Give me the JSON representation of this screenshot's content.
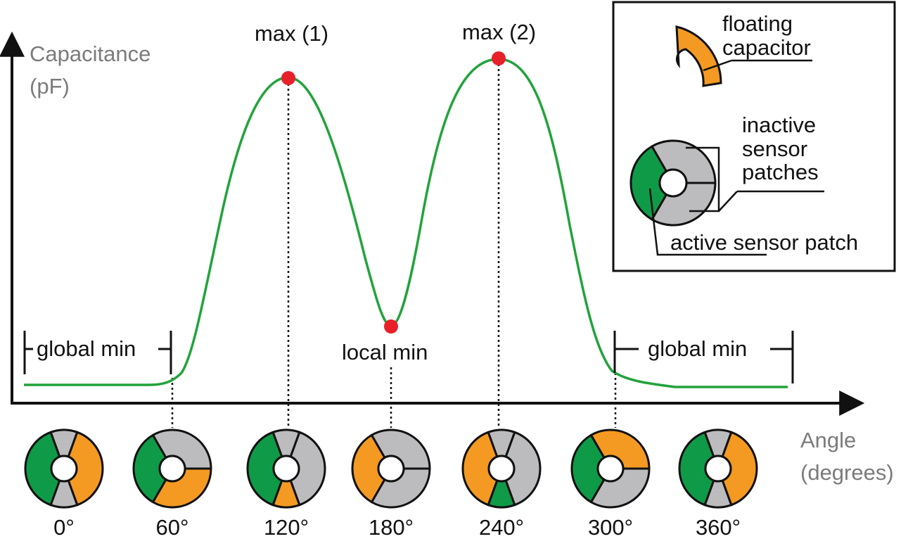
{
  "chart_data": {
    "type": "line",
    "ylabel": [
      "Capacitance",
      "(pF)"
    ],
    "xlabel": [
      "Angle",
      "(degrees)"
    ],
    "x": [
      0,
      60,
      120,
      180,
      240,
      300,
      360
    ],
    "xticks": [
      "0°",
      "60°",
      "120°",
      "180°",
      "240°",
      "300°",
      "360°"
    ],
    "curve_color": "#22a33b",
    "marker_color": "#e8202a",
    "annotations": {
      "max1": "max (1)",
      "max2": "max (2)",
      "local_min": "local min",
      "global_min_left": "global min",
      "global_min_right": "global min"
    }
  },
  "legend": {
    "floating_capacitor": [
      "floating",
      "capacitor"
    ],
    "inactive": [
      "inactive",
      "sensor",
      "patches"
    ],
    "active": "active sensor patch"
  },
  "colors": {
    "active": "#0f9a48",
    "inactive": "#bcbcbe",
    "floating": "#f49a22"
  },
  "sensors": [
    {
      "angle": "0°",
      "sectors": [
        "green",
        "gray",
        "orange",
        "gray"
      ]
    },
    {
      "angle": "60°",
      "sectors": [
        "green",
        "gray",
        "orange"
      ]
    },
    {
      "angle": "120°",
      "sectors": [
        "green",
        "gray",
        "gray",
        "orange"
      ]
    },
    {
      "angle": "180°",
      "sectors": [
        "orange",
        "gray",
        "gray"
      ]
    },
    {
      "angle": "240°",
      "sectors": [
        "orange",
        "gray",
        "gray",
        "green"
      ]
    },
    {
      "angle": "300°",
      "sectors": [
        "green",
        "orange",
        "gray"
      ]
    },
    {
      "angle": "360°",
      "sectors": [
        "green",
        "gray",
        "orange",
        "gray"
      ]
    }
  ]
}
